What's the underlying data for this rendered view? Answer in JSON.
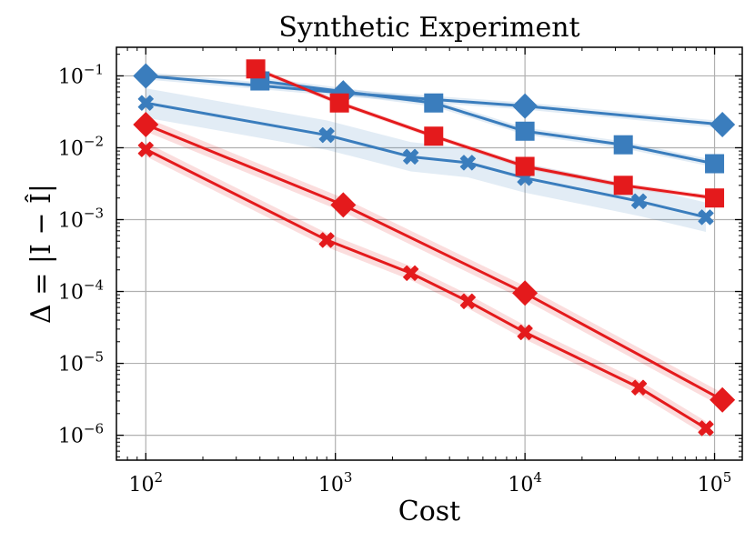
{
  "chart_data": {
    "type": "line",
    "title": "Synthetic Experiment",
    "xlabel": "Cost",
    "ylabel": "Δ = |I − Î|",
    "xscale": "log",
    "yscale": "log",
    "xlim": [
      70,
      140000
    ],
    "ylim": [
      4.5e-07,
      0.25
    ],
    "grid": true,
    "x_ticks": [
      {
        "value": 100,
        "base": "10",
        "exp": "2"
      },
      {
        "value": 1000,
        "base": "10",
        "exp": "3"
      },
      {
        "value": 10000,
        "base": "10",
        "exp": "4"
      },
      {
        "value": 100000,
        "base": "10",
        "exp": "5"
      }
    ],
    "y_ticks": [
      {
        "value": 1e-06,
        "base": "10",
        "exp": "−6"
      },
      {
        "value": 1e-05,
        "base": "10",
        "exp": "−5"
      },
      {
        "value": 0.0001,
        "base": "10",
        "exp": "−4"
      },
      {
        "value": 0.001,
        "base": "10",
        "exp": "−3"
      },
      {
        "value": 0.01,
        "base": "10",
        "exp": "−2"
      },
      {
        "value": 0.1,
        "base": "10",
        "exp": "−1"
      }
    ],
    "series": [
      {
        "name": "blue-diamond",
        "color": "#3a7dbd",
        "marker": "diamond",
        "band": 0.12,
        "x": [
          100,
          1100,
          10000,
          110000
        ],
        "y": [
          0.1,
          0.058,
          0.038,
          0.021
        ]
      },
      {
        "name": "blue-square",
        "color": "#3a7dbd",
        "marker": "square",
        "band": 0.12,
        "x": [
          400,
          3300,
          10000,
          33000,
          100000
        ],
        "y": [
          0.085,
          0.042,
          0.017,
          0.011,
          0.006
        ]
      },
      {
        "name": "blue-cross",
        "color": "#3a7dbd",
        "marker": "x",
        "band": 0.6,
        "x": [
          100,
          900,
          2500,
          5000,
          10000,
          40000,
          90000
        ],
        "y": [
          0.042,
          0.015,
          0.0075,
          0.0062,
          0.0038,
          0.0018,
          0.00108
        ]
      },
      {
        "name": "red-square",
        "color": "#e41a1c",
        "marker": "square",
        "band": 0.08,
        "x": [
          380,
          1050,
          3300,
          10000,
          33000,
          100000
        ],
        "y": [
          0.125,
          0.042,
          0.0145,
          0.0055,
          0.003,
          0.002
        ]
      },
      {
        "name": "red-diamond",
        "color": "#e41a1c",
        "marker": "diamond",
        "band": 0.25,
        "x": [
          100,
          1100,
          10000,
          110000
        ],
        "y": [
          0.021,
          0.0016,
          9.5e-05,
          3.1e-06
        ]
      },
      {
        "name": "red-cross",
        "color": "#e41a1c",
        "marker": "x",
        "band": 0.25,
        "x": [
          100,
          900,
          2500,
          5000,
          10000,
          40000,
          90000
        ],
        "y": [
          0.0095,
          0.00052,
          0.00018,
          7.3e-05,
          2.7e-05,
          4.6e-06,
          1.25e-06
        ]
      }
    ]
  }
}
